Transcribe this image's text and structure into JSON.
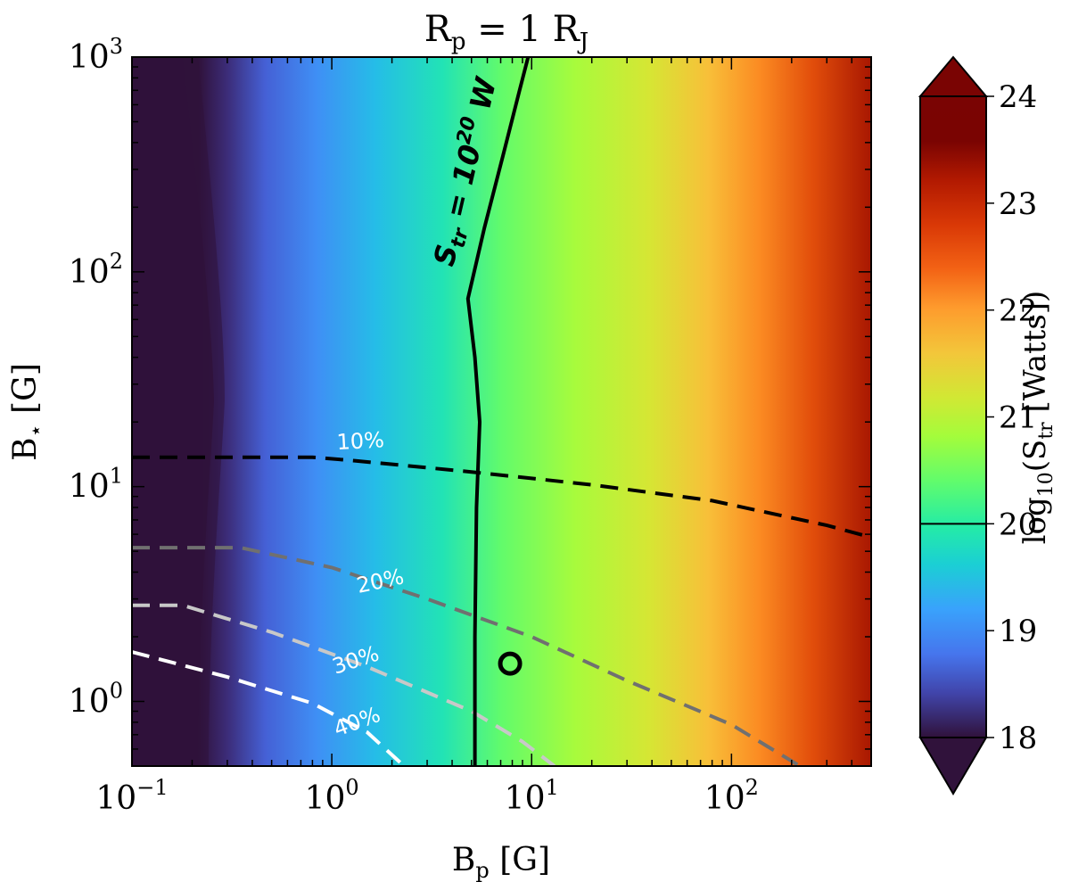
{
  "chart_data": {
    "type": "heatmap",
    "title": "R_p = 1 R_J",
    "title_parts": {
      "base": "R",
      "sub": "p",
      "mid": " = 1 R",
      "sub2": "J"
    },
    "xlabel": {
      "base": "B",
      "sub": "p",
      "rest": " [G]"
    },
    "ylabel": {
      "base": "B",
      "sub": "⋆",
      "rest": " [G]"
    },
    "x_scale": "log",
    "y_scale": "log",
    "xlim": [
      0.1,
      500
    ],
    "ylim": [
      0.5,
      1000
    ],
    "x_ticks": [
      {
        "value": 0.1,
        "base": "10",
        "exp": "−1"
      },
      {
        "value": 1,
        "base": "10",
        "exp": "0"
      },
      {
        "value": 10,
        "base": "10",
        "exp": "1"
      },
      {
        "value": 100,
        "base": "10",
        "exp": "2"
      }
    ],
    "y_ticks": [
      {
        "value": 1,
        "base": "10",
        "exp": "0"
      },
      {
        "value": 10,
        "base": "10",
        "exp": "1"
      },
      {
        "value": 100,
        "base": "10",
        "exp": "2"
      },
      {
        "value": 1000,
        "base": "10",
        "exp": "3"
      }
    ],
    "colorbar": {
      "label": {
        "pre": "log",
        "sub": "10",
        "mid": "(S",
        "sub2": "tr",
        "post": " [Watts])"
      },
      "vmin": 18,
      "vmax": 24,
      "ticks": [
        "18",
        "19",
        "20",
        "21",
        "22",
        "23",
        "24"
      ],
      "marked_level": 20,
      "extend": "both"
    },
    "solid_contour": {
      "label_parts": {
        "s": "S",
        "sub": "tr",
        "eq": " = 10",
        "sup": "20",
        "unit": " W"
      },
      "level": 20,
      "points": [
        [
          9.6,
          1000
        ],
        [
          8.7,
          700
        ],
        [
          7.2,
          350
        ],
        [
          5.8,
          160
        ],
        [
          4.8,
          75
        ],
        [
          5.2,
          40
        ],
        [
          5.5,
          20
        ],
        [
          5.3,
          8
        ],
        [
          5.2,
          2
        ],
        [
          5.2,
          0.5
        ]
      ]
    },
    "dashed_contours": [
      {
        "label": "10%",
        "color": "#000000",
        "points": [
          [
            0.1,
            13.7
          ],
          [
            0.8,
            13.7
          ],
          [
            1.3,
            13.2
          ],
          [
            5,
            11.7
          ],
          [
            20,
            10.2
          ],
          [
            80,
            8.6
          ],
          [
            300,
            6.6
          ],
          [
            500,
            5.8
          ]
        ]
      },
      {
        "label": "20%",
        "color": "#707070",
        "points": [
          [
            0.1,
            5.2
          ],
          [
            0.35,
            5.2
          ],
          [
            1,
            4.2
          ],
          [
            3,
            3.0
          ],
          [
            10,
            2.0
          ],
          [
            30,
            1.25
          ],
          [
            100,
            0.78
          ],
          [
            220,
            0.5
          ]
        ]
      },
      {
        "label": "30%",
        "color": "#c8c8c8",
        "points": [
          [
            0.1,
            2.8
          ],
          [
            0.18,
            2.8
          ],
          [
            0.5,
            2.1
          ],
          [
            1.5,
            1.45
          ],
          [
            5,
            0.9
          ],
          [
            9,
            0.65
          ],
          [
            13,
            0.5
          ]
        ]
      },
      {
        "label": "40%",
        "color": "#ffffff",
        "points": [
          [
            0.1,
            1.7
          ],
          [
            0.3,
            1.3
          ],
          [
            0.8,
            0.98
          ],
          [
            1.5,
            0.72
          ],
          [
            2.3,
            0.5
          ]
        ]
      }
    ],
    "marker": {
      "type": "open-circle",
      "x": 7.8,
      "y": 1.5
    }
  }
}
